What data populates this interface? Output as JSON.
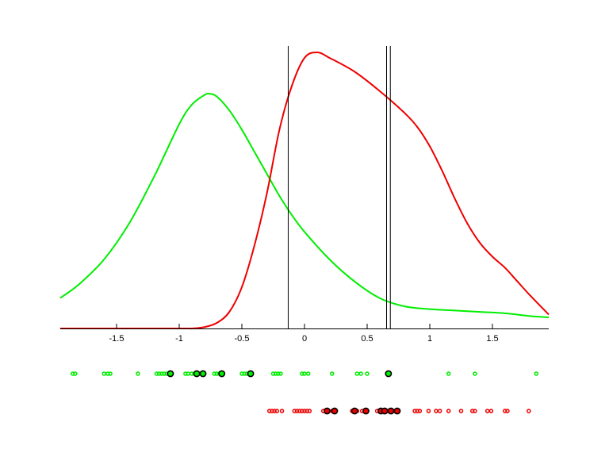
{
  "chart_data": {
    "type": "line",
    "title": "",
    "xlabel": "",
    "ylabel": "",
    "xlim": [
      -1.95,
      1.95
    ],
    "grid": false,
    "legend": null,
    "x_ticks": [
      -1.5,
      -1,
      -0.5,
      0,
      0.5,
      1,
      1.5
    ],
    "x_tick_labels": [
      "-1.5",
      "-1",
      "-0.5",
      "0",
      "0.5",
      "1",
      "1.5"
    ],
    "series": [
      {
        "name": "green-density",
        "color": "#00ee00",
        "x": [
          -1.95,
          -1.8,
          -1.6,
          -1.4,
          -1.2,
          -1.0,
          -0.9,
          -0.8,
          -0.76,
          -0.7,
          -0.6,
          -0.5,
          -0.4,
          -0.3,
          -0.2,
          -0.1,
          0.0,
          0.2,
          0.4,
          0.6,
          0.8,
          1.0,
          1.2,
          1.4,
          1.6,
          1.8,
          1.95
        ],
        "y": [
          0.11,
          0.16,
          0.25,
          0.38,
          0.55,
          0.74,
          0.81,
          0.845,
          0.85,
          0.84,
          0.79,
          0.72,
          0.64,
          0.56,
          0.48,
          0.41,
          0.35,
          0.25,
          0.17,
          0.11,
          0.08,
          0.07,
          0.065,
          0.06,
          0.055,
          0.045,
          0.04
        ]
      },
      {
        "name": "red-density",
        "color": "#ee0000",
        "x": [
          -1.95,
          -1.0,
          -0.9,
          -0.8,
          -0.7,
          -0.6,
          -0.5,
          -0.4,
          -0.3,
          -0.2,
          -0.1,
          0.0,
          0.1,
          0.2,
          0.4,
          0.6,
          0.8,
          0.9,
          1.0,
          1.1,
          1.2,
          1.3,
          1.4,
          1.5,
          1.6,
          1.7,
          1.8,
          1.95
        ],
        "y": [
          0.0,
          0.0,
          0.0,
          0.005,
          0.02,
          0.06,
          0.15,
          0.3,
          0.49,
          0.72,
          0.88,
          0.98,
          1.0,
          0.98,
          0.93,
          0.86,
          0.78,
          0.73,
          0.66,
          0.57,
          0.47,
          0.38,
          0.31,
          0.26,
          0.22,
          0.17,
          0.12,
          0.05
        ]
      }
    ],
    "vertical_lines": [
      -0.13,
      0.655,
      0.685
    ],
    "rug_rows": [
      {
        "name": "green-points",
        "color": "#00ee00",
        "points": [
          -1.85,
          -1.83,
          -1.6,
          -1.57,
          -1.55,
          -1.33,
          -1.18,
          -1.16,
          -1.14,
          -1.12,
          -1.1,
          -1.07,
          -0.95,
          -0.93,
          -0.9,
          -0.88,
          -0.86,
          -0.84,
          -0.82,
          -0.72,
          -0.7,
          -0.68,
          -0.66,
          -0.5,
          -0.48,
          -0.46,
          -0.43,
          -0.25,
          -0.23,
          -0.21,
          -0.19,
          -0.02,
          0.0,
          0.03,
          0.22,
          0.42,
          0.45,
          0.5,
          0.67,
          1.15,
          1.36,
          1.85
        ],
        "highlighted": [
          -1.07,
          -0.86,
          -0.81,
          -0.66,
          -0.43,
          0.67
        ]
      },
      {
        "name": "red-points",
        "color": "#ee0000",
        "points": [
          -0.28,
          -0.26,
          -0.24,
          -0.22,
          -0.18,
          -0.08,
          -0.06,
          -0.04,
          -0.02,
          0.0,
          0.02,
          0.04,
          0.15,
          0.18,
          0.22,
          0.25,
          0.38,
          0.42,
          0.46,
          0.5,
          0.58,
          0.61,
          0.64,
          0.67,
          0.72,
          0.75,
          0.88,
          0.9,
          0.92,
          0.99,
          1.05,
          1.08,
          1.15,
          1.25,
          1.34,
          1.36,
          1.46,
          1.49,
          1.6,
          1.62,
          1.79
        ],
        "highlighted": [
          0.18,
          0.24,
          0.4,
          0.49,
          0.61,
          0.64,
          0.69,
          0.74
        ]
      }
    ]
  }
}
